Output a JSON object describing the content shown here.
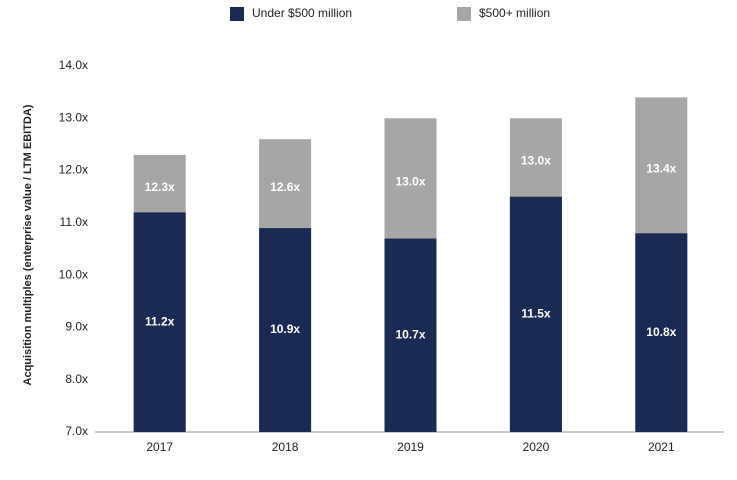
{
  "chart_data": {
    "type": "bar",
    "mode": "overlap",
    "y_label": "Acquisition multiples (enterprise value / LTM EBITDA)",
    "categories": [
      "2017",
      "2018",
      "2019",
      "2020",
      "2021"
    ],
    "series": [
      {
        "name": "$500+ million",
        "color": "#a6a6a6",
        "values": [
          12.3,
          12.6,
          13.0,
          13.0,
          13.4
        ],
        "value_labels": [
          "12.3x",
          "12.6x",
          "13.0x",
          "13.0x",
          "13.4x"
        ]
      },
      {
        "name": "Under $500 million",
        "color": "#1b2a52",
        "values": [
          11.2,
          10.9,
          10.7,
          11.5,
          10.8
        ],
        "value_labels": [
          "11.2x",
          "10.9x",
          "10.7x",
          "11.5x",
          "10.8x"
        ]
      }
    ],
    "ylim": [
      7,
      14
    ],
    "yticks": [
      {
        "value": 7,
        "label": "7.0x"
      },
      {
        "value": 8,
        "label": "8.0x"
      },
      {
        "value": 9,
        "label": "9.0x"
      },
      {
        "value": 10,
        "label": "10.0x"
      },
      {
        "value": 11,
        "label": "11.0x"
      },
      {
        "value": 12,
        "label": "12.0x"
      },
      {
        "value": 13,
        "label": "13.0x"
      },
      {
        "value": 14,
        "label": "14.0x"
      }
    ],
    "grid": false
  }
}
